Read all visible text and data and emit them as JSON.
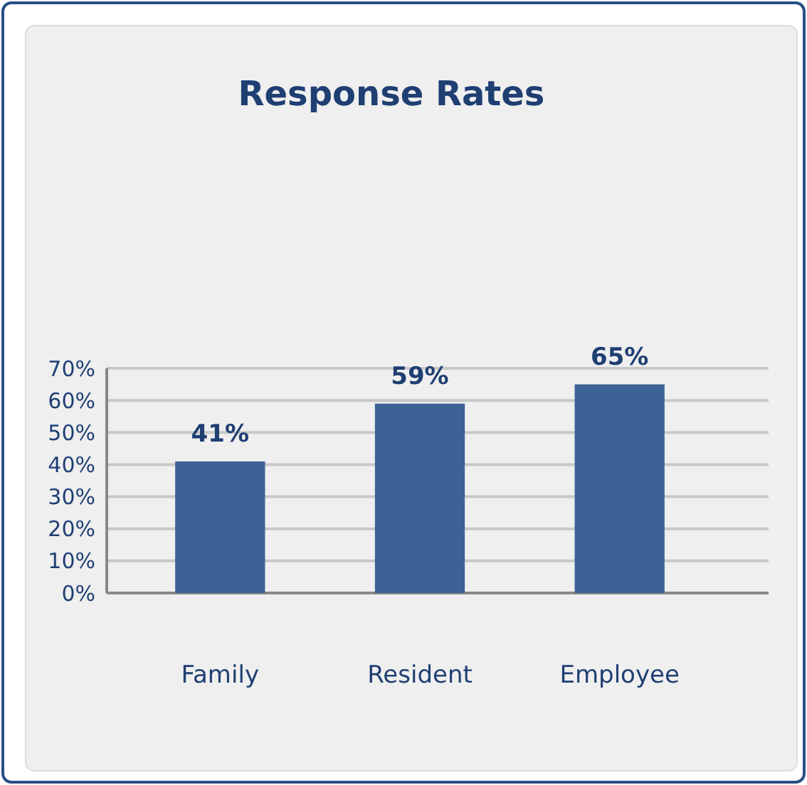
{
  "chart_data": {
    "type": "bar",
    "title": "Response Rates",
    "categories": [
      "Family",
      "Resident",
      "Employee"
    ],
    "values": [
      41,
      59,
      65
    ],
    "color": "#3d6396",
    "ylim": [
      0,
      70
    ],
    "yticks": [
      {
        "value": 0,
        "label": "0%"
      },
      {
        "value": 10,
        "label": "10%"
      },
      {
        "value": 20,
        "label": "20%"
      },
      {
        "value": 30,
        "label": "30%"
      },
      {
        "value": 40,
        "label": "40%"
      },
      {
        "value": 50,
        "label": "50%"
      },
      {
        "value": 60,
        "label": "60%"
      },
      {
        "value": 70,
        "label": "70%"
      }
    ],
    "value_labels": [
      "41%",
      "59%",
      "65%"
    ],
    "grid": "y"
  }
}
